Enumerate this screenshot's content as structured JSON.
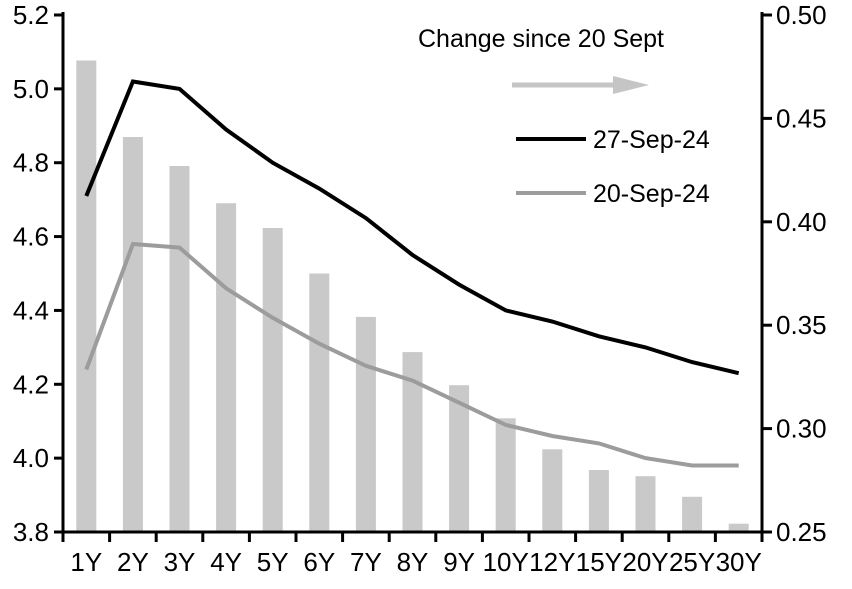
{
  "chart_data": {
    "type": "combo-bar-line",
    "title": "",
    "categories": [
      "1Y",
      "2Y",
      "3Y",
      "4Y",
      "5Y",
      "6Y",
      "7Y",
      "8Y",
      "9Y",
      "10Y",
      "12Y",
      "15Y",
      "20Y",
      "25Y",
      "30Y"
    ],
    "series": [
      {
        "name": "Change since 20 Sept",
        "type": "bar",
        "axis": "right",
        "color": "#c9c9c9",
        "values": [
          0.478,
          0.441,
          0.427,
          0.409,
          0.397,
          0.375,
          0.354,
          0.337,
          0.321,
          0.305,
          0.29,
          0.28,
          0.277,
          0.267,
          0.254
        ]
      },
      {
        "name": "27-Sep-24",
        "type": "line",
        "axis": "left",
        "color": "#000000",
        "values": [
          4.71,
          5.02,
          5.0,
          4.89,
          4.8,
          4.73,
          4.65,
          4.55,
          4.47,
          4.4,
          4.37,
          4.33,
          4.3,
          4.26,
          4.23
        ]
      },
      {
        "name": "20-Sep-24",
        "type": "line",
        "axis": "left",
        "color": "#9c9c9c",
        "values": [
          4.24,
          4.58,
          4.57,
          4.46,
          4.38,
          4.31,
          4.25,
          4.21,
          4.15,
          4.09,
          4.06,
          4.04,
          4.0,
          3.98,
          3.98
        ]
      }
    ],
    "left_axis": {
      "max": 5.2,
      "min": 3.8,
      "tick_values": [
        5.2,
        5.0,
        4.8,
        4.6,
        4.4,
        4.2,
        4.0,
        3.8
      ],
      "tick_labels": [
        "5.2",
        "5.0",
        "4.8",
        "4.6",
        "4.4",
        "4.2",
        "4.0",
        "3.8"
      ]
    },
    "right_axis": {
      "max": 0.5,
      "min": 0.25,
      "tick_values": [
        0.5,
        0.45,
        0.4,
        0.35,
        0.3,
        0.25
      ],
      "tick_labels": [
        "0.50",
        "0.45",
        "0.40",
        "0.35",
        "0.30",
        "0.25"
      ]
    },
    "grid": false,
    "legend_position": "top-right-inside"
  },
  "legend": {
    "arrow_color": "#c5c5c5",
    "axis_color": "#000000"
  }
}
